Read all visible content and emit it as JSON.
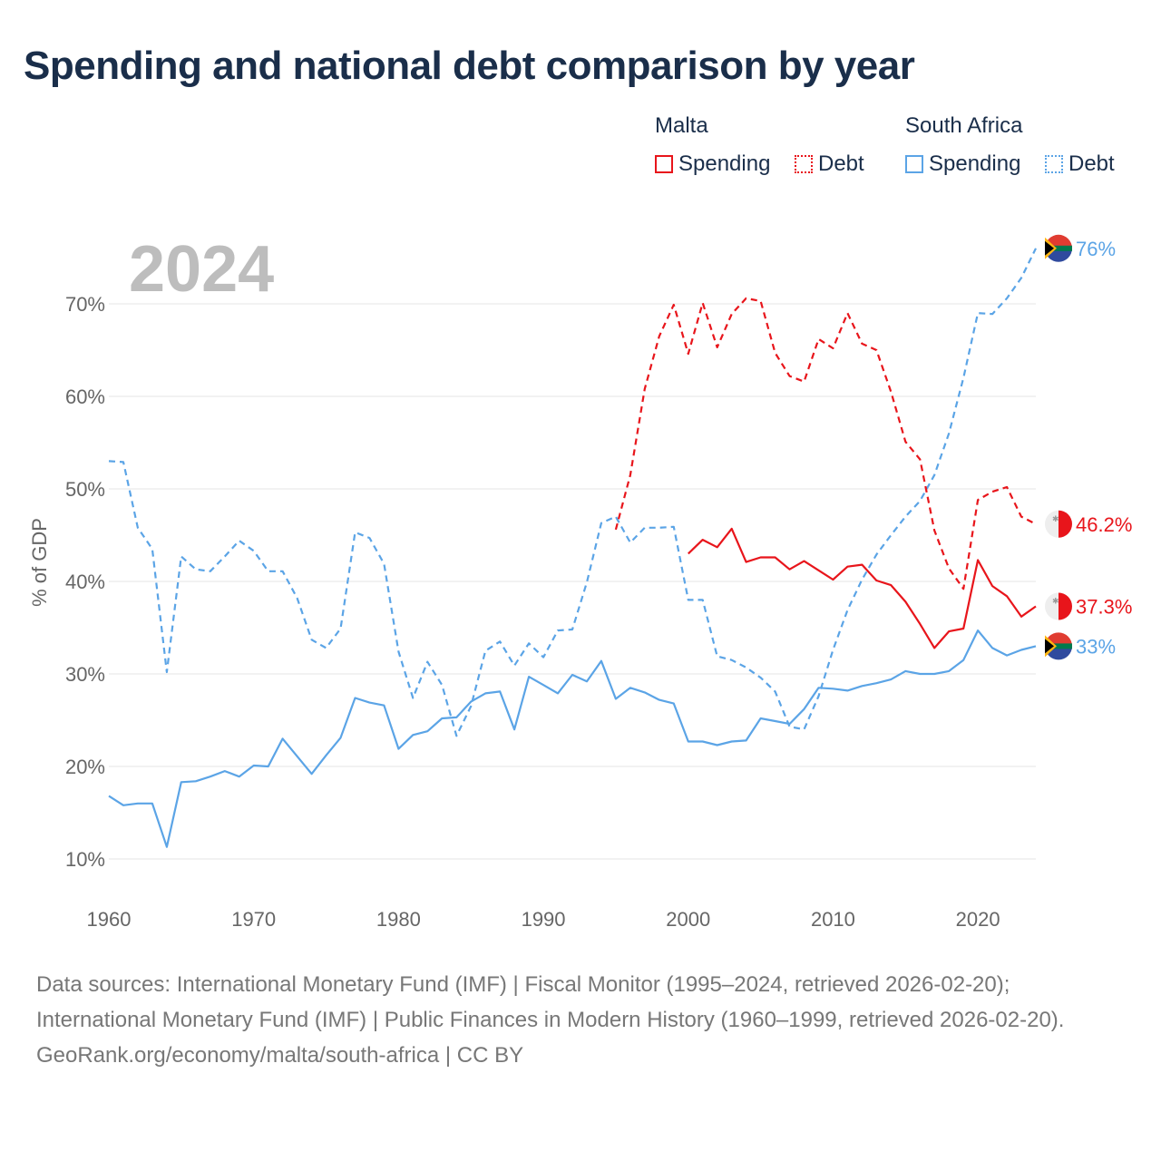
{
  "title": "Spending and national debt comparison by year",
  "year_label": "2024",
  "legend": {
    "malta": {
      "title": "Malta",
      "spending": "Spending",
      "debt": "Debt"
    },
    "south_africa": {
      "title": "South Africa",
      "spending": "Spending",
      "debt": "Debt"
    }
  },
  "footer": {
    "sources": "Data sources: International Monetary Fund (IMF) | Fiscal Monitor (1995–2024, retrieved 2026-02-20); International Monetary Fund (IMF) | Public Finances in Modern History (1960–1999, retrieved 2026-02-20).",
    "attribution": "GeoRank.org/economy/malta/south-africa | CC BY"
  },
  "colors": {
    "malta": "#e8151b",
    "south_africa": "#5ba4e6",
    "grid": "#e6e6e6",
    "title": "#1a2e4a"
  },
  "chart_data": {
    "type": "line",
    "title": "Spending and national debt comparison by year",
    "xlabel": "",
    "ylabel": "% of GDP",
    "xlim": [
      1960,
      2024
    ],
    "ylim": [
      10,
      76
    ],
    "x_ticks": [
      1960,
      1970,
      1980,
      1990,
      2000,
      2010,
      2020
    ],
    "y_ticks": [
      10,
      20,
      30,
      40,
      50,
      60,
      70
    ],
    "y_tick_labels": [
      "10%",
      "20%",
      "30%",
      "40%",
      "50%",
      "60%",
      "70%"
    ],
    "series": [
      {
        "key": "sa_debt",
        "name": "South Africa Debt",
        "color": "#5ba4e6",
        "style": "dashed",
        "x": [
          1960,
          1961,
          1962,
          1963,
          1964,
          1965,
          1966,
          1967,
          1968,
          1969,
          1970,
          1971,
          1972,
          1973,
          1974,
          1975,
          1976,
          1977,
          1978,
          1979,
          1980,
          1981,
          1982,
          1983,
          1984,
          1985,
          1986,
          1987,
          1988,
          1989,
          1990,
          1991,
          1992,
          1993,
          1994,
          1995,
          1996,
          1997,
          1998,
          1999,
          2000,
          2001,
          2002,
          2003,
          2004,
          2005,
          2006,
          2007,
          2008,
          2009,
          2010,
          2011,
          2012,
          2013,
          2014,
          2015,
          2016,
          2017,
          2018,
          2019,
          2020,
          2021,
          2022,
          2023,
          2024
        ],
        "y": [
          53,
          52.9,
          45.8,
          43.5,
          30.2,
          42.7,
          41.3,
          41.1,
          42.7,
          44.4,
          43.3,
          41.1,
          41.1,
          38.2,
          33.7,
          32.8,
          34.9,
          45.3,
          44.7,
          41.9,
          32.4,
          27.4,
          31.3,
          28.8,
          23.3,
          26.5,
          32.5,
          33.5,
          30.9,
          33.3,
          31.8,
          34.7,
          34.8,
          39.9,
          46.3,
          47.0,
          44.2,
          45.8,
          45.8,
          45.9,
          38.0,
          38.0,
          31.9,
          31.5,
          30.7,
          29.6,
          28.1,
          24.3,
          24.0,
          27.6,
          32.6,
          36.9,
          40.2,
          42.9,
          45.0,
          47.0,
          48.7,
          51.5,
          56.0,
          62.0,
          69.0,
          68.9,
          70.6,
          72.8,
          76.0
        ],
        "end_label": "76%"
      },
      {
        "key": "sa_spending",
        "name": "South Africa Spending",
        "color": "#5ba4e6",
        "style": "solid",
        "x": [
          1960,
          1961,
          1962,
          1963,
          1964,
          1965,
          1966,
          1967,
          1968,
          1969,
          1970,
          1971,
          1972,
          1973,
          1974,
          1975,
          1976,
          1977,
          1978,
          1979,
          1980,
          1981,
          1982,
          1983,
          1984,
          1985,
          1986,
          1987,
          1988,
          1989,
          1990,
          1991,
          1992,
          1993,
          1994,
          1995,
          1996,
          1997,
          1998,
          1999,
          2000,
          2001,
          2002,
          2003,
          2004,
          2005,
          2006,
          2007,
          2008,
          2009,
          2010,
          2011,
          2012,
          2013,
          2014,
          2015,
          2016,
          2017,
          2018,
          2019,
          2020,
          2021,
          2022,
          2023,
          2024
        ],
        "y": [
          16.8,
          15.8,
          16.0,
          16.0,
          11.3,
          18.3,
          18.4,
          18.9,
          19.5,
          18.9,
          20.1,
          20.0,
          23.0,
          21.1,
          19.2,
          21.2,
          23.1,
          27.4,
          26.9,
          26.6,
          21.9,
          23.4,
          23.8,
          25.2,
          25.3,
          27.0,
          27.9,
          28.1,
          24.0,
          29.7,
          28.8,
          27.9,
          29.9,
          29.2,
          31.4,
          27.3,
          28.5,
          28.0,
          27.2,
          26.8,
          22.7,
          22.7,
          22.3,
          22.7,
          22.8,
          25.2,
          24.9,
          24.6,
          26.2,
          28.5,
          28.4,
          28.2,
          28.7,
          29.0,
          29.4,
          30.3,
          30.0,
          30.0,
          30.3,
          31.5,
          34.7,
          32.8,
          32.0,
          32.6,
          33.0
        ],
        "end_label": "33%"
      },
      {
        "key": "mt_debt",
        "name": "Malta Debt",
        "color": "#e8151b",
        "style": "dashed",
        "x": [
          1995,
          1996,
          1997,
          1998,
          1999,
          2000,
          2001,
          2002,
          2003,
          2004,
          2005,
          2006,
          2007,
          2008,
          2009,
          2010,
          2011,
          2012,
          2013,
          2014,
          2015,
          2016,
          2017,
          2018,
          2019,
          2020,
          2021,
          2022,
          2023,
          2024
        ],
        "y": [
          45.6,
          51.5,
          60.8,
          66.5,
          69.9,
          64.6,
          70.1,
          65.3,
          68.9,
          70.6,
          70.3,
          64.7,
          62.2,
          61.6,
          66.2,
          65.2,
          69.0,
          65.7,
          65.0,
          60.5,
          55.1,
          53.2,
          45.5,
          41.4,
          39.2,
          48.8,
          49.7,
          50.2,
          47.0,
          46.2
        ],
        "end_label": "46.2%"
      },
      {
        "key": "mt_spending",
        "name": "Malta Spending",
        "color": "#e8151b",
        "style": "solid",
        "x": [
          2000,
          2001,
          2002,
          2003,
          2004,
          2005,
          2006,
          2007,
          2008,
          2009,
          2010,
          2011,
          2012,
          2013,
          2014,
          2015,
          2016,
          2017,
          2018,
          2019,
          2020,
          2021,
          2022,
          2023,
          2024
        ],
        "y": [
          43.0,
          44.5,
          43.7,
          45.7,
          42.1,
          42.6,
          42.6,
          41.3,
          42.2,
          41.2,
          40.2,
          41.6,
          41.8,
          40.1,
          39.6,
          37.8,
          35.4,
          32.8,
          34.6,
          34.9,
          42.3,
          39.5,
          38.4,
          36.2,
          37.3
        ],
        "end_label": "37.3%"
      }
    ]
  }
}
